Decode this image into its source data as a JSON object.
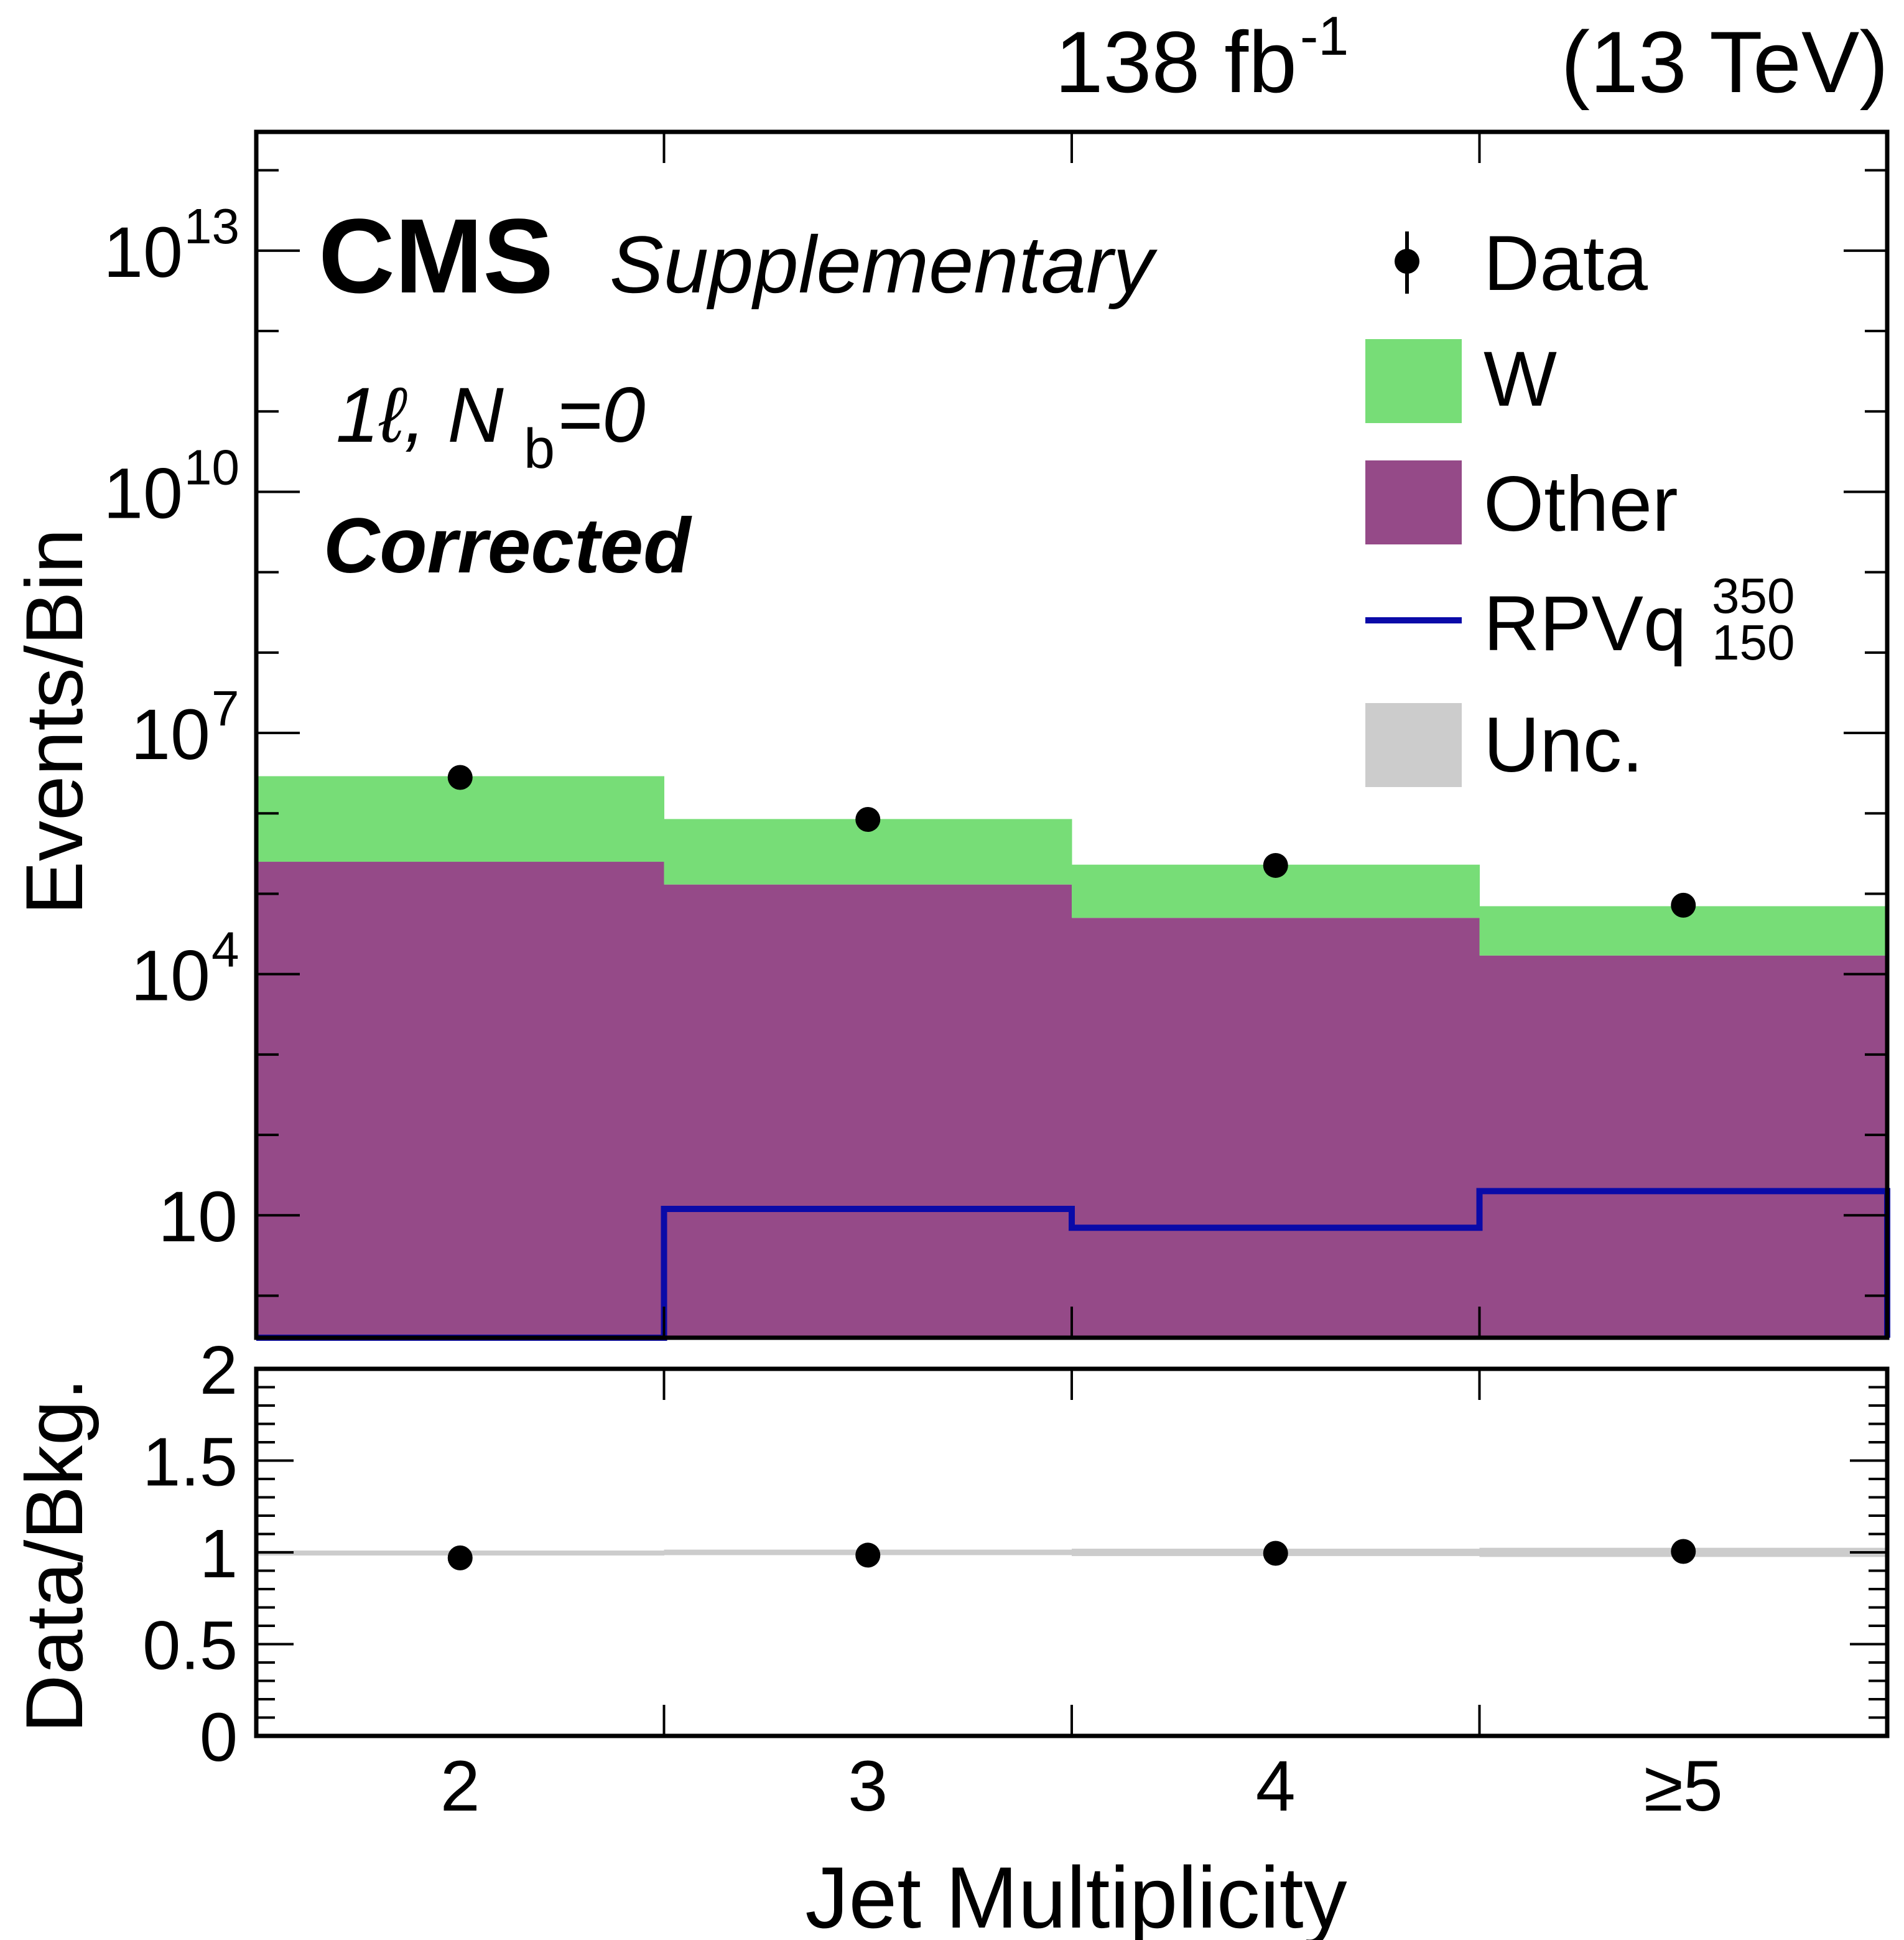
{
  "header": {
    "lumi_value": "138 fb",
    "lumi_sup": "-1",
    "energy": "(13 TeV)"
  },
  "labels": {
    "experiment": "CMS",
    "status": "Supplementary",
    "selection_prefix": "1ℓ, N",
    "selection_sub": "b",
    "selection_suffix": "=0",
    "correction": "Corrected"
  },
  "legend": {
    "data": "Data",
    "w": "W",
    "other": "Other",
    "signal": "RPVq",
    "signal_sup": "350",
    "signal_sub": "150",
    "unc": "Unc."
  },
  "colors": {
    "w": "#77dd77",
    "other": "#954a88",
    "signal": "#0a0aa8",
    "unc": "#cccccc",
    "data": "#000000"
  },
  "chart_data": [
    {
      "type": "bar",
      "stacked": true,
      "log_y": true,
      "categories": [
        "2",
        "3",
        "4",
        "≥5"
      ],
      "ylabel": "Events/Bin",
      "ylim": [
        0.3,
        300000000000000.0
      ],
      "y_ticks": [
        10,
        10000,
        10000000,
        10000000000,
        10000000000000
      ],
      "y_tick_labels": [
        {
          "base": "10",
          "exp": ""
        },
        {
          "base": "10",
          "exp": "4"
        },
        {
          "base": "10",
          "exp": "7"
        },
        {
          "base": "10",
          "exp": "10"
        },
        {
          "base": "10",
          "exp": "13"
        }
      ],
      "series": [
        {
          "name": "Other",
          "kind": "stack",
          "color_key": "other",
          "values": [
            250000,
            130000,
            50000,
            17000
          ]
        },
        {
          "name": "W",
          "kind": "stack",
          "color_key": "w",
          "values": [
            2650000,
            720000,
            180000,
            53000
          ]
        },
        {
          "name": "RPVq",
          "kind": "step",
          "color_key": "signal",
          "values": [
            0.0,
            12,
            7,
            20
          ]
        },
        {
          "name": "Data",
          "kind": "points",
          "color_key": "data",
          "values": [
            2800000,
            840000,
            225000,
            72000
          ]
        }
      ]
    },
    {
      "type": "scatter",
      "categories": [
        "2",
        "3",
        "4",
        "≥5"
      ],
      "xlabel": "Jet Multiplicity",
      "ylabel": "Data/Bkg.",
      "ylim": [
        0,
        2
      ],
      "y_ticks": [
        0,
        0.5,
        1,
        1.5,
        2
      ],
      "y_tick_labels": [
        "0",
        "0.5",
        "1",
        "1.5",
        "2"
      ],
      "series": [
        {
          "name": "Data",
          "values": [
            0.97,
            0.985,
            0.995,
            1.005
          ]
        },
        {
          "name": "Unc.",
          "kind": "band",
          "low": [
            0.99,
            0.985,
            0.98,
            0.975
          ],
          "high": [
            1.01,
            1.015,
            1.02,
            1.025
          ]
        }
      ]
    }
  ]
}
